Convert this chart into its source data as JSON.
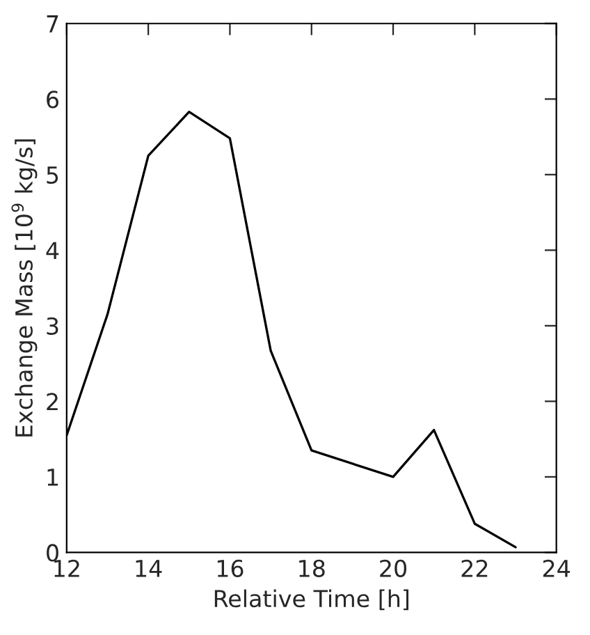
{
  "chart_data": {
    "type": "line",
    "xlabel": "Relative Time [h]",
    "ylabel": "Exchange Mass [10$^{9}$ kg/s]",
    "x": [
      12,
      13,
      14,
      15,
      16,
      17,
      18,
      20,
      21,
      22,
      23
    ],
    "series": [
      {
        "color": "#000000",
        "values": [
          1.55,
          3.15,
          5.25,
          5.83,
          5.48,
          2.67,
          1.35,
          1.0,
          1.62,
          0.38,
          0.07
        ]
      }
    ],
    "xlim": [
      12,
      24
    ],
    "xticks": [
      12,
      14,
      16,
      18,
      20,
      22,
      24
    ],
    "ylim": [
      0,
      7
    ],
    "yticks": [
      0,
      1,
      2,
      3,
      4,
      5,
      6,
      7
    ],
    "grid": false,
    "legend": false,
    "marker": "none",
    "line_style": "solid"
  }
}
